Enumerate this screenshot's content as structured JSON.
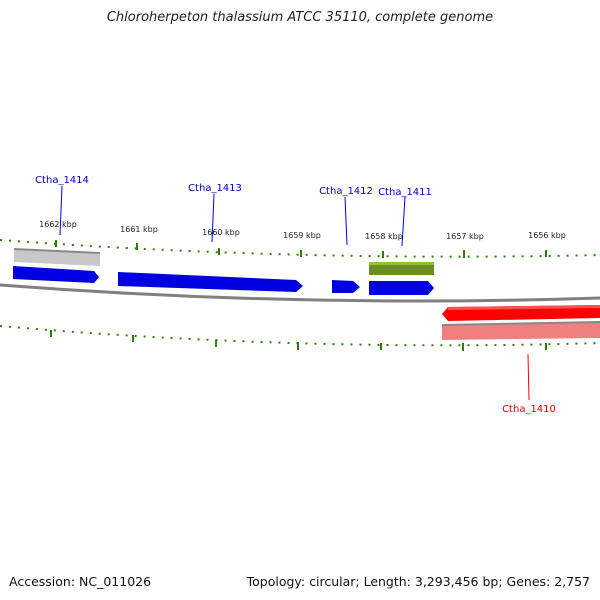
{
  "title": "Chloroherpeton thalassium ATCC 35110, complete genome",
  "footer": {
    "accession": "Accession: NC_011026",
    "summary": "Topology: circular; Length: 3,293,456 bp; Genes: 2,757"
  },
  "scale": {
    "ticks": [
      "1662 kbp",
      "1661 kbp",
      "1660 kbp",
      "1659 kbp",
      "1658 kbp",
      "1657 kbp",
      "1656 kbp"
    ]
  },
  "genes": [
    {
      "name": "Ctha_1414",
      "strand": "forward",
      "color": "#0000e0"
    },
    {
      "name": "Ctha_1413",
      "strand": "forward",
      "color": "#0000e0"
    },
    {
      "name": "Ctha_1412",
      "strand": "forward",
      "color": "#0000e0"
    },
    {
      "name": "Ctha_1411",
      "strand": "forward",
      "color": "#0000e0"
    },
    {
      "name": "Ctha_1410",
      "strand": "reverse",
      "color": "#ff0000"
    }
  ],
  "colors": {
    "backbone": "#808080",
    "tick": "#2e7d0a",
    "forward_gene": "#0000e0",
    "reverse_gene": "#ff0000",
    "cds_gray": "#c0c0c0",
    "cds_green": "#6b8e23",
    "cds_pink": "#f08080"
  }
}
